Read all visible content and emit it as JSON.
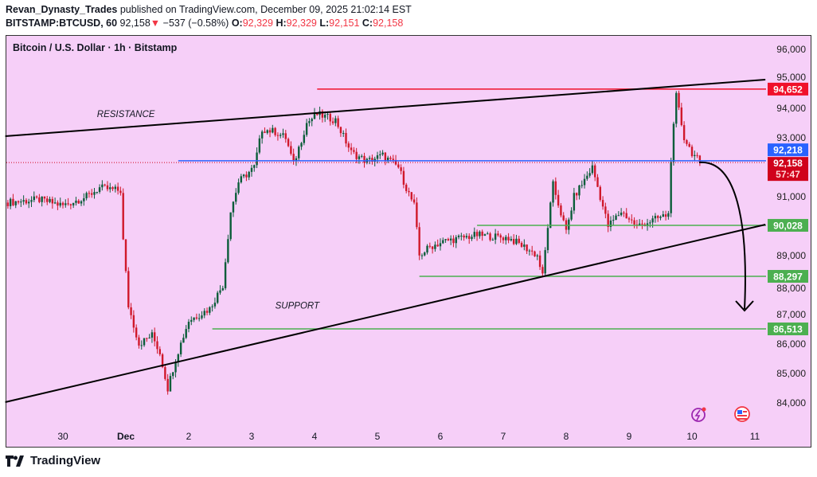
{
  "header": {
    "author": "Revan_Dynasty_Trades",
    "published": "published on TradingView.com, December 09, 2025 21:02:14 EST",
    "symbol": "BITSTAMP:BTCUSD, 60",
    "last": "92,158",
    "change": "−537 (−0.58%)",
    "o_label": "O:",
    "o": "92,329",
    "h_label": "H:",
    "h": "92,329",
    "l_label": "L:",
    "l": "92,151",
    "c_label": "C:",
    "c": "92,158"
  },
  "footer": {
    "brand": "TradingView"
  },
  "chart_data": {
    "type": "candlestick",
    "title": "Bitcoin / U.S. Dollar · 1h · Bitstamp",
    "interval": "1h",
    "ylim": [
      83500,
      96500
    ],
    "y_ticks": [
      96000,
      95000,
      94000,
      93000,
      91000,
      89000,
      88000,
      87000,
      86000,
      85000,
      84000
    ],
    "y_tick_labels": [
      "96,000",
      "95,000",
      "94,000",
      "93,000",
      "91,000",
      "89,000",
      "88,000",
      "87,000",
      "86,000",
      "85,000",
      "84,000"
    ],
    "x_ticks": [
      "11-30 00",
      "12-01 00",
      "12-02 00",
      "12-03 00",
      "12-04 00",
      "12-05 00",
      "12-06 00",
      "12-07 00",
      "12-08 00",
      "12-09 00",
      "12-10 00",
      "12-11 00"
    ],
    "x_tick_labels": [
      "30",
      "Dec",
      "2",
      "3",
      "4",
      "5",
      "6",
      "7",
      "8",
      "9",
      "10",
      "11"
    ],
    "grid": false,
    "price_path": [
      [
        "11-29 02",
        90800
      ],
      [
        "11-29 15",
        90900
      ],
      [
        "11-30 00",
        90700
      ],
      [
        "11-30 09",
        91000
      ],
      [
        "11-30 14",
        91300
      ],
      [
        "11-30 22",
        91200
      ],
      [
        "11-30 23",
        89500
      ],
      [
        "12-01 01",
        87300
      ],
      [
        "12-01 05",
        86000
      ],
      [
        "12-01 10",
        86300
      ],
      [
        "12-01 13",
        85700
      ],
      [
        "12-01 16",
        84500
      ],
      [
        "12-01 19",
        85500
      ],
      [
        "12-02 00",
        86800
      ],
      [
        "12-02 04",
        87000
      ],
      [
        "12-02 08",
        87200
      ],
      [
        "12-02 13",
        88000
      ],
      [
        "12-02 16",
        90500
      ],
      [
        "12-02 19",
        91500
      ],
      [
        "12-03 01",
        92000
      ],
      [
        "12-03 04",
        93300
      ],
      [
        "12-03 09",
        93200
      ],
      [
        "12-03 13",
        93000
      ],
      [
        "12-03 16",
        92100
      ],
      [
        "12-03 21",
        93500
      ],
      [
        "12-04 01",
        93800
      ],
      [
        "12-04 08",
        93600
      ],
      [
        "12-04 14",
        92500
      ],
      [
        "12-04 20",
        92200
      ],
      [
        "12-05 02",
        92400
      ],
      [
        "12-05 08",
        92000
      ],
      [
        "12-05 11",
        91300
      ],
      [
        "12-05 14",
        90700
      ],
      [
        "12-05 16",
        89000
      ],
      [
        "12-05 20",
        89300
      ],
      [
        "12-06 02",
        89500
      ],
      [
        "12-06 14",
        89700
      ],
      [
        "12-07 02",
        89600
      ],
      [
        "12-07 08",
        89300
      ],
      [
        "12-07 13",
        89000
      ],
      [
        "12-07 15",
        88300
      ],
      [
        "12-07 17",
        90000
      ],
      [
        "12-07 19",
        91400
      ],
      [
        "12-08 00",
        89800
      ],
      [
        "12-08 03",
        91000
      ],
      [
        "12-08 10",
        92000
      ],
      [
        "12-08 16",
        90000
      ],
      [
        "12-08 21",
        90500
      ],
      [
        "12-09 03",
        90000
      ],
      [
        "12-09 15",
        90400
      ],
      [
        "12-09 16",
        92300
      ],
      [
        "12-09 18",
        94400
      ],
      [
        "12-09 21",
        93000
      ],
      [
        "12-10 00",
        92500
      ],
      [
        "12-10 03",
        92158
      ]
    ],
    "trendlines": [
      {
        "name": "resistance",
        "from": [
          "11-29 02",
          93054
        ],
        "to": [
          "12-11 04",
          94973
        ],
        "color": "#000000"
      },
      {
        "name": "support",
        "from": [
          "11-29 02",
          84027
        ],
        "to": [
          "12-11 04",
          90054
        ],
        "color": "#000000"
      }
    ],
    "levels": [
      {
        "price": 94652,
        "label": "94,652",
        "from": "12-04 01",
        "color": "#f0102a"
      },
      {
        "price": 92218,
        "label": "92,218",
        "from": "12-01 20",
        "color": "#2962ff"
      },
      {
        "price": 90028,
        "label": "90,028",
        "from": "12-06 14",
        "color": "#4caf50"
      },
      {
        "price": 88297,
        "label": "88,297",
        "from": "12-05 16",
        "color": "#4caf50"
      },
      {
        "price": 86513,
        "label": "86,513",
        "from": "12-02 09",
        "color": "#4caf50"
      }
    ],
    "last_price": {
      "price": 92158,
      "label": "92,158",
      "countdown": "57:47",
      "color": "#d0021b"
    },
    "annotations": [
      {
        "text": "RESISTANCE",
        "at": [
          "11-30 13",
          93700
        ]
      },
      {
        "text": "SUPPORT",
        "at": [
          "12-03 09",
          87200
        ]
      }
    ],
    "up_color": "#0b5d3a",
    "down_color": "#d0182b"
  }
}
